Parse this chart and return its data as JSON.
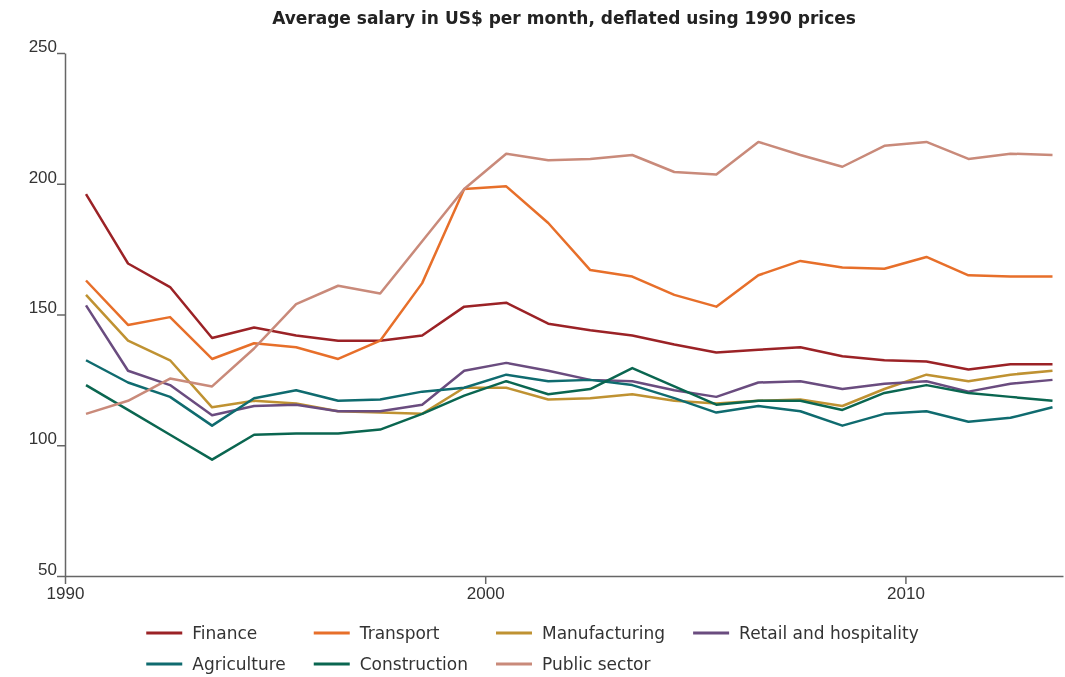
{
  "chart_data": {
    "type": "line",
    "title": "Average salary in US$ per month, deflated using 1990 prices",
    "x": [
      1990.5,
      1991.5,
      1992.5,
      1993.5,
      1994.5,
      1995.5,
      1996.5,
      1997.5,
      1998.5,
      1999.5,
      2000.5,
      2001.5,
      2002.5,
      2003.5,
      2004.5,
      2005.5,
      2006.5,
      2007.5,
      2008.5,
      2009.5,
      2010.5,
      2011.5,
      2012.5,
      2013.5
    ],
    "xlim": [
      1990,
      2013.75
    ],
    "xticks": [
      1990,
      2000,
      2010
    ],
    "ylim": [
      50,
      250
    ],
    "yticks": [
      50,
      100,
      150,
      200,
      250
    ],
    "grid": false,
    "legend": "bottom",
    "marker": "none",
    "line_style": "solid",
    "series": [
      {
        "name": "Finance",
        "color": "#9b2226",
        "values": [
          196,
          169.5,
          160.5,
          141,
          145,
          142,
          140,
          140,
          142,
          153,
          154.5,
          146.5,
          144,
          142,
          138.5,
          135.5,
          136.5,
          137.5,
          134,
          132.5,
          132,
          129,
          131,
          131
        ]
      },
      {
        "name": "Transport",
        "color": "#e76f2a",
        "values": [
          163,
          146,
          149,
          133,
          139,
          137.5,
          133,
          140,
          162,
          198,
          199,
          185,
          167,
          164.5,
          157.5,
          153,
          165,
          170.5,
          168,
          167.5,
          172,
          165,
          164.5,
          164.5
        ]
      },
      {
        "name": "Manufacturing",
        "color": "#bf9232",
        "values": [
          157.5,
          140,
          132.5,
          114.5,
          117,
          116,
          113,
          112.5,
          112,
          122,
          122,
          117.5,
          118,
          119.5,
          117,
          116,
          117,
          117.5,
          115,
          121.5,
          127,
          124.5,
          127,
          128.5
        ]
      },
      {
        "name": "Retail and hospitality",
        "color": "#6a4c7f",
        "values": [
          153.5,
          128.5,
          123,
          111.5,
          115,
          115.5,
          113,
          113,
          115.5,
          128.5,
          131.5,
          128.5,
          125,
          124.5,
          121,
          118.5,
          124,
          124.5,
          121.5,
          123.5,
          124.5,
          120.5,
          123.5,
          125
        ]
      },
      {
        "name": "Agriculture",
        "color": "#0f6b6f",
        "values": [
          132.5,
          124,
          118.5,
          107.5,
          118,
          121,
          117,
          117.5,
          120.5,
          122,
          127,
          124.5,
          125,
          123,
          118,
          112.5,
          115,
          113,
          107.5,
          112,
          113,
          109,
          110.5,
          114.5
        ]
      },
      {
        "name": "Construction",
        "color": "#0a6650",
        "values": [
          123,
          113.5,
          104,
          94.5,
          104,
          104.5,
          104.5,
          106,
          112,
          119,
          124.5,
          119.5,
          121.5,
          129.5,
          122.5,
          115.5,
          117,
          117,
          113.5,
          120,
          123,
          120,
          118.5,
          117
        ]
      },
      {
        "name": "Public sector",
        "color": "#c98a7a",
        "values": [
          112,
          117,
          125.5,
          122.5,
          137,
          154,
          161,
          158,
          178,
          198,
          211.5,
          209,
          209.5,
          211,
          204.5,
          203.5,
          216,
          211,
          206.5,
          214.5,
          216,
          209.5,
          211.5,
          211
        ]
      }
    ]
  }
}
